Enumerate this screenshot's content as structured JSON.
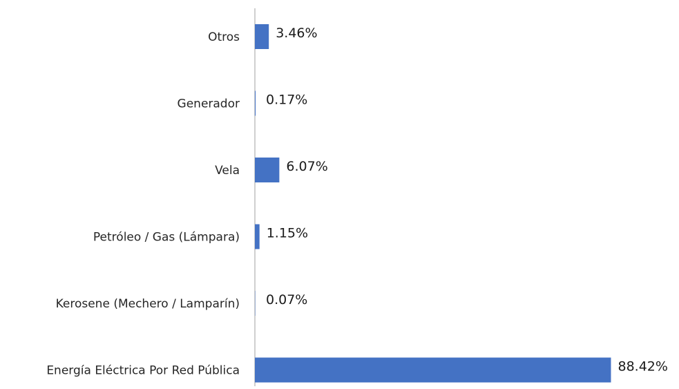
{
  "chart_data": {
    "type": "bar",
    "orientation": "horizontal",
    "categories": [
      "Otros",
      "Generador",
      "Vela",
      "Petróleo / Gas (Lámpara)",
      "Kerosene (Mechero / Lamparín)",
      "Energía Eléctrica Por Red Pública"
    ],
    "values": [
      3.46,
      0.17,
      6.07,
      1.15,
      0.07,
      88.42
    ],
    "data_labels": [
      "3.46%",
      "0.17%",
      "6.07%",
      "1.15%",
      "0.07%",
      "88.42%"
    ],
    "title": "",
    "xlabel": "",
    "ylabel": "",
    "xlim": [
      0,
      100
    ],
    "grid": false,
    "legend": "none",
    "bar_color": "#4472C4",
    "axis_color": "#bfbfbf"
  }
}
